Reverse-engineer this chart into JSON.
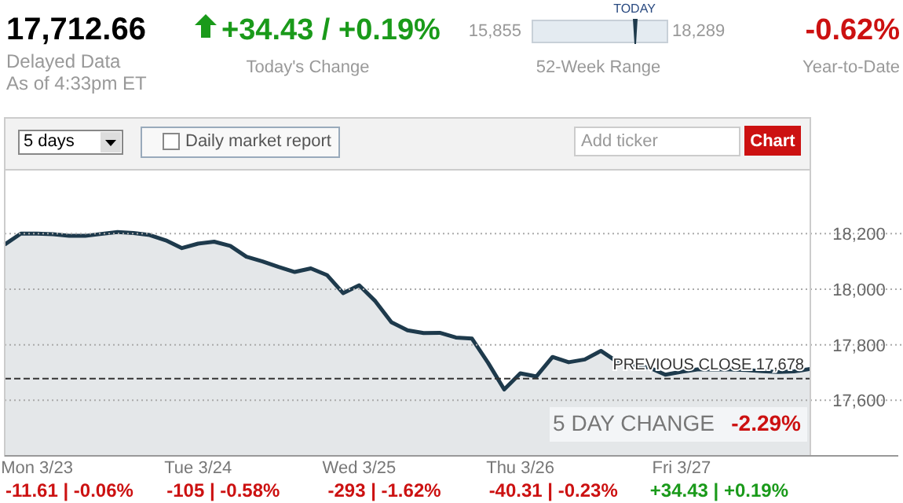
{
  "chart_data": {
    "type": "area",
    "title": "17,712.66",
    "annotations": [
      "Delayed Data",
      "As of 4:33pm ET",
      "+34.43 / +0.19%",
      "Today's Change",
      "15,855",
      "18,289",
      "TODAY",
      "52-Week Range",
      "-0.62%",
      "Year-to-Date",
      "5 days",
      "Daily market report",
      "Add ticker",
      "Chart",
      "5 DAY CHANGE",
      "-2.29%",
      "-11.61 | -0.06%",
      "-105 | -0.58%",
      "-293 | -1.62%",
      "-40.31 | -0.23%",
      "+34.43 | +0.19%"
    ],
    "categories": [
      null,
      null,
      "Mon 3/23",
      null,
      null,
      null,
      null,
      null,
      null,
      null,
      null,
      null,
      "Tue 3/24",
      null,
      null,
      null,
      null,
      null,
      null,
      null,
      null,
      null,
      "Wed 3/25",
      null,
      null,
      null,
      null,
      null,
      null,
      null,
      null,
      null,
      "Thu 3/26",
      null,
      null,
      null,
      null,
      null,
      null,
      null,
      null,
      null,
      "Fri 3/27",
      null,
      null,
      null,
      null,
      null,
      null,
      null,
      null
    ],
    "series": [
      {
        "color": "#1e3a4c",
        "values": [
          18161,
          18200,
          18200,
          18198,
          18192,
          18192,
          18199,
          18206,
          18202,
          18195,
          18176,
          18148,
          18164,
          18171,
          18156,
          18117,
          18100,
          18080,
          18062,
          18075,
          18051,
          17986,
          18014,
          17957,
          17881,
          17852,
          17842,
          17843,
          17826,
          17822,
          17735,
          17639,
          17697,
          17686,
          17756,
          17737,
          17747,
          17778,
          17739,
          17726,
          17718,
          17692,
          17703,
          17711,
          17711,
          17711,
          17709,
          17705,
          17702,
          17704,
          17713
        ]
      }
    ],
    "ylim": [
      17400,
      18430
    ],
    "yticks": [
      {
        "value": 17600,
        "label": "17,600"
      },
      {
        "value": 17800,
        "label": "17,800"
      },
      {
        "value": 18000,
        "label": "18,000"
      },
      {
        "value": 18200,
        "label": "18,200"
      }
    ],
    "ref_lines": [
      {
        "axis": "y",
        "value": 17678,
        "label": "PREVIOUS CLOSE 17,678",
        "color": "#333333",
        "line_style": "dashed"
      }
    ],
    "grid": "y",
    "marker": "none",
    "line_style": "solid"
  }
}
